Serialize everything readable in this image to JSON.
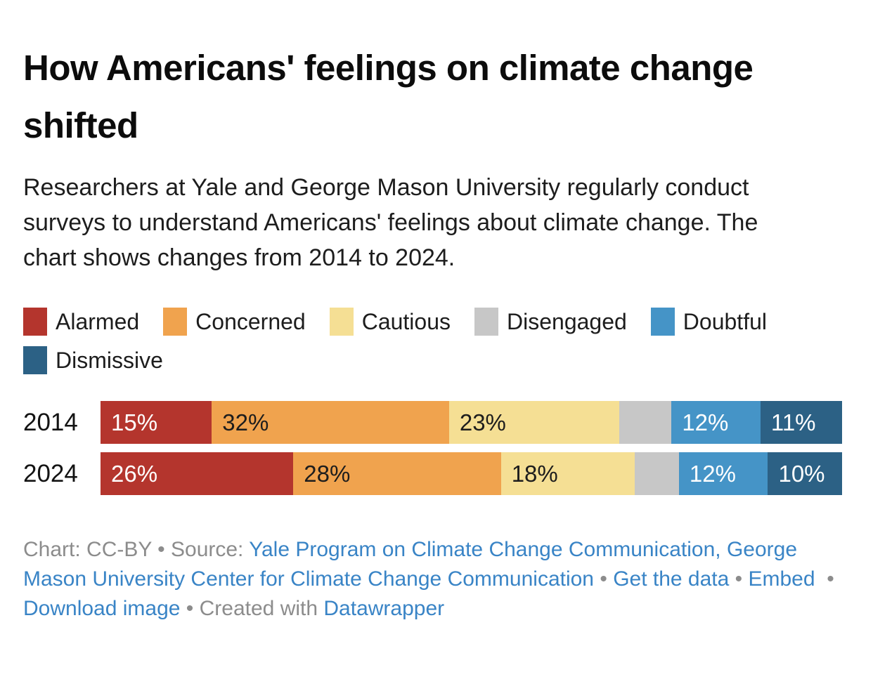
{
  "chart_data": {
    "type": "bar",
    "stacked": true,
    "orientation": "horizontal",
    "title": "How Americans' feelings on climate change shifted",
    "description": "Researchers at Yale and George Mason University regularly conduct surveys to understand Americans' feelings about climate change. The chart shows changes from 2014 to 2024.",
    "categories": [
      "2014",
      "2024"
    ],
    "series": [
      {
        "name": "Alarmed",
        "color": "#b4352d",
        "label_color": "#ffffff",
        "values": [
          15,
          26
        ],
        "bar_labels": [
          "15%",
          "26%"
        ]
      },
      {
        "name": "Concerned",
        "color": "#f0a34e",
        "label_color": "#1d1d1d",
        "values": [
          32,
          28
        ],
        "bar_labels": [
          "32%",
          "28%"
        ]
      },
      {
        "name": "Cautious",
        "color": "#f5df94",
        "label_color": "#1d1d1d",
        "values": [
          23,
          18
        ],
        "bar_labels": [
          "23%",
          "18%"
        ]
      },
      {
        "name": "Disengaged",
        "color": "#c7c7c7",
        "label_color": "#1d1d1d",
        "values": [
          7,
          6
        ],
        "bar_labels": [
          "",
          ""
        ]
      },
      {
        "name": "Doubtful",
        "color": "#4594c7",
        "label_color": "#ffffff",
        "values": [
          12,
          12
        ],
        "bar_labels": [
          "12%",
          "12%"
        ]
      },
      {
        "name": "Dismissive",
        "color": "#2c6185",
        "label_color": "#ffffff",
        "values": [
          11,
          10
        ],
        "bar_labels": [
          "11%",
          "10%"
        ]
      }
    ],
    "unit": "%",
    "xlim": [
      0,
      100
    ],
    "grid": false,
    "legend_position": "top"
  },
  "footer": {
    "text_color": "#8c8c8c",
    "link_color": "#3984c6",
    "parts": [
      {
        "text": "Chart: CC-BY • Source: ",
        "link": false
      },
      {
        "text": "Yale Program on Climate Change Communication, George Mason University Center for Climate Change Communication",
        "link": true,
        "name": "source-link"
      },
      {
        "text": " • ",
        "link": false
      },
      {
        "text": "Get the data",
        "link": true,
        "name": "get-the-data-link"
      },
      {
        "text": " • ",
        "link": false
      },
      {
        "text": "Embed",
        "link": true,
        "name": "embed-link"
      },
      {
        "text": "  • ",
        "link": false
      },
      {
        "text": "Download image",
        "link": true,
        "name": "download-image-link"
      },
      {
        "text": " • Created with ",
        "link": false
      },
      {
        "text": "Datawrapper",
        "link": true,
        "name": "datawrapper-link"
      }
    ]
  }
}
